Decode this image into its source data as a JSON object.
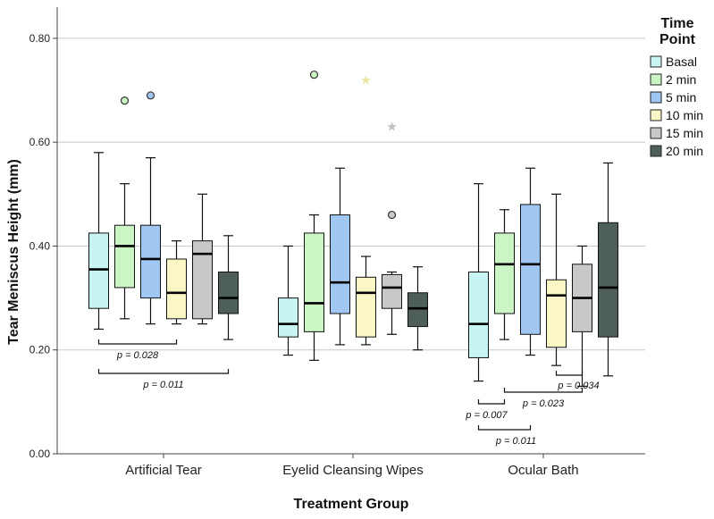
{
  "chart_data": {
    "type": "boxplot",
    "title": "",
    "xlabel": "Treatment Group",
    "ylabel": "Tear Meniscus Height (mm)",
    "ylim": [
      0.0,
      0.86
    ],
    "yticks": [
      0.0,
      0.2,
      0.4,
      0.6,
      0.8
    ],
    "ytick_labels": [
      "0.00",
      "0.20",
      "0.40",
      "0.60",
      "0.80"
    ],
    "grid": true,
    "legend": {
      "title_line1": "Time",
      "title_line2": "Point",
      "placement": "right",
      "entries": [
        {
          "name": "Basal",
          "color": "#c9f4f4"
        },
        {
          "name": "2 min",
          "color": "#ccf5c6"
        },
        {
          "name": "5 min",
          "color": "#9fc7f2"
        },
        {
          "name": "10 min",
          "color": "#fbf6c5"
        },
        {
          "name": "15 min",
          "color": "#c8c8c8"
        },
        {
          "name": "20 min",
          "color": "#4e5e58"
        }
      ]
    },
    "categories": [
      "Artificial Tear",
      "Eyelid Cleansing Wipes",
      "Ocular Bath"
    ],
    "groups": [
      {
        "category": "Artificial Tear",
        "boxes": [
          {
            "series": "Basal",
            "min": 0.24,
            "q1": 0.28,
            "median": 0.355,
            "q3": 0.425,
            "max": 0.58,
            "outliers": [],
            "extremes": []
          },
          {
            "series": "2 min",
            "min": 0.26,
            "q1": 0.32,
            "median": 0.4,
            "q3": 0.44,
            "max": 0.52,
            "outliers": [
              0.68
            ],
            "extremes": []
          },
          {
            "series": "5 min",
            "min": 0.25,
            "q1": 0.3,
            "median": 0.375,
            "q3": 0.44,
            "max": 0.57,
            "outliers": [
              0.69
            ],
            "extremes": []
          },
          {
            "series": "10 min",
            "min": 0.25,
            "q1": 0.26,
            "median": 0.31,
            "q3": 0.375,
            "max": 0.41,
            "outliers": [],
            "extremes": []
          },
          {
            "series": "15 min",
            "min": 0.25,
            "q1": 0.26,
            "median": 0.385,
            "q3": 0.41,
            "max": 0.5,
            "outliers": [],
            "extremes": []
          },
          {
            "series": "20 min",
            "min": 0.22,
            "q1": 0.27,
            "median": 0.3,
            "q3": 0.35,
            "max": 0.42,
            "outliers": [],
            "extremes": []
          }
        ]
      },
      {
        "category": "Eyelid Cleansing Wipes",
        "boxes": [
          {
            "series": "Basal",
            "min": 0.19,
            "q1": 0.225,
            "median": 0.25,
            "q3": 0.3,
            "max": 0.4,
            "outliers": [],
            "extremes": []
          },
          {
            "series": "2 min",
            "min": 0.18,
            "q1": 0.235,
            "median": 0.29,
            "q3": 0.425,
            "max": 0.46,
            "outliers": [
              0.73
            ],
            "extremes": []
          },
          {
            "series": "5 min",
            "min": 0.21,
            "q1": 0.27,
            "median": 0.33,
            "q3": 0.46,
            "max": 0.55,
            "outliers": [],
            "extremes": []
          },
          {
            "series": "10 min",
            "min": 0.21,
            "q1": 0.225,
            "median": 0.31,
            "q3": 0.34,
            "max": 0.38,
            "outliers": [],
            "extremes": [
              0.72
            ]
          },
          {
            "series": "15 min",
            "min": 0.23,
            "q1": 0.28,
            "median": 0.32,
            "q3": 0.345,
            "max": 0.35,
            "outliers": [
              0.46
            ],
            "extremes": [
              0.63
            ]
          },
          {
            "series": "20 min",
            "min": 0.2,
            "q1": 0.245,
            "median": 0.28,
            "q3": 0.31,
            "max": 0.36,
            "outliers": [],
            "extremes": []
          }
        ]
      },
      {
        "category": "Ocular Bath",
        "boxes": [
          {
            "series": "Basal",
            "min": 0.14,
            "q1": 0.185,
            "median": 0.25,
            "q3": 0.35,
            "max": 0.52,
            "outliers": [],
            "extremes": []
          },
          {
            "series": "2 min",
            "min": 0.22,
            "q1": 0.27,
            "median": 0.365,
            "q3": 0.425,
            "max": 0.47,
            "outliers": [],
            "extremes": []
          },
          {
            "series": "5 min",
            "min": 0.19,
            "q1": 0.23,
            "median": 0.365,
            "q3": 0.48,
            "max": 0.55,
            "outliers": [],
            "extremes": []
          },
          {
            "series": "10 min",
            "min": 0.17,
            "q1": 0.205,
            "median": 0.305,
            "q3": 0.335,
            "max": 0.5,
            "outliers": [],
            "extremes": []
          },
          {
            "series": "15 min",
            "min": 0.13,
            "q1": 0.235,
            "median": 0.3,
            "q3": 0.365,
            "max": 0.4,
            "outliers": [],
            "extremes": []
          },
          {
            "series": "20 min",
            "min": 0.15,
            "q1": 0.225,
            "median": 0.32,
            "q3": 0.445,
            "max": 0.56,
            "outliers": [],
            "extremes": []
          }
        ]
      }
    ],
    "annotations": [
      {
        "group": 0,
        "from": 0,
        "to": 3,
        "label": "p = 0.028",
        "level": 0
      },
      {
        "group": 0,
        "from": 0,
        "to": 5,
        "label": "p = 0.011",
        "level": 1
      },
      {
        "group": 2,
        "from": 3,
        "to": 4,
        "label": "p = 0.034",
        "level": 0
      },
      {
        "group": 2,
        "from": 1,
        "to": 4,
        "label": "p = 0.023",
        "level": 1
      },
      {
        "group": 2,
        "from": 0,
        "to": 1,
        "label": "p = 0.007",
        "level": 2
      },
      {
        "group": 2,
        "from": 0,
        "to": 2,
        "label": "p = 0.011",
        "level": 3
      }
    ]
  }
}
